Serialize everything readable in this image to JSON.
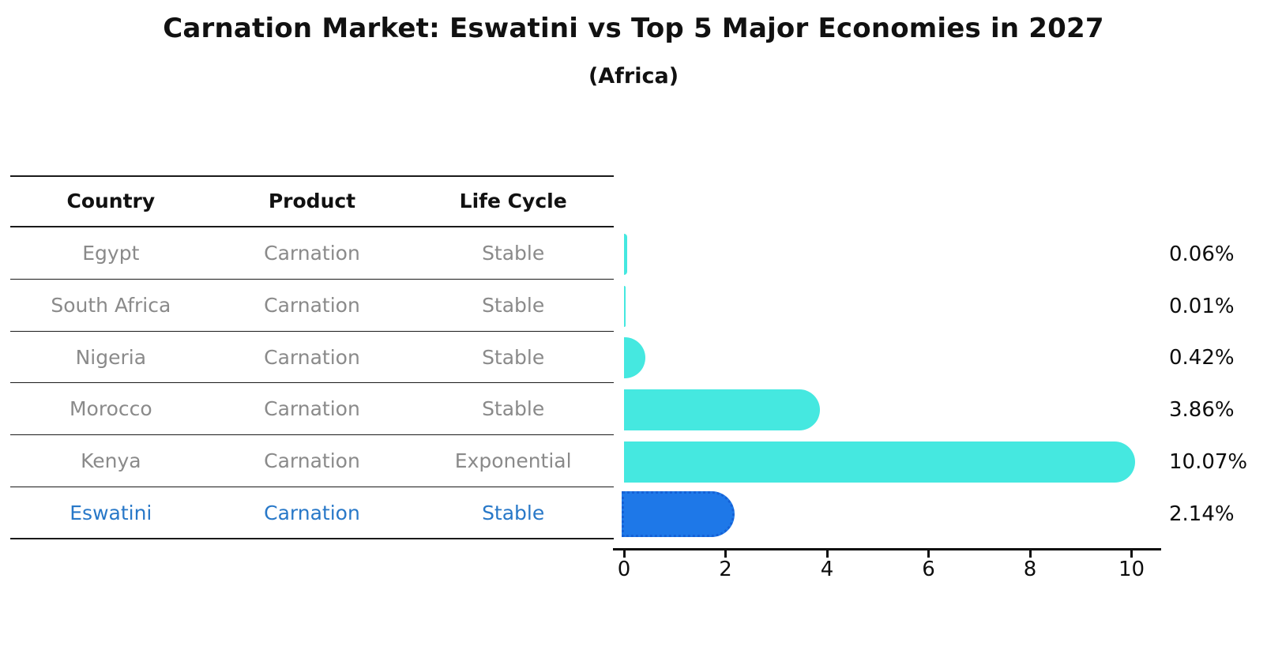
{
  "title": "Carnation Market: Eswatini vs Top 5 Major Economies in 2027",
  "subtitle": "(Africa)",
  "table": {
    "headers": [
      "Country",
      "Product",
      "Life Cycle"
    ],
    "rows": [
      {
        "country": "Egypt",
        "product": "Carnation",
        "life_cycle": "Stable",
        "highlight": false
      },
      {
        "country": "South Africa",
        "product": "Carnation",
        "life_cycle": "Stable",
        "highlight": false
      },
      {
        "country": "Nigeria",
        "product": "Carnation",
        "life_cycle": "Stable",
        "highlight": false
      },
      {
        "country": "Morocco",
        "product": "Carnation",
        "life_cycle": "Stable",
        "highlight": false
      },
      {
        "country": "Kenya",
        "product": "Carnation",
        "life_cycle": "Exponential",
        "highlight": false
      },
      {
        "country": "Eswatini",
        "product": "Carnation",
        "life_cycle": "Stable",
        "highlight": true
      }
    ]
  },
  "chart_data": {
    "type": "bar",
    "orientation": "horizontal",
    "title": "Carnation Market: Eswatini vs Top 5 Major Economies in 2027",
    "subtitle": "(Africa)",
    "categories": [
      "Egypt",
      "South Africa",
      "Nigeria",
      "Morocco",
      "Kenya",
      "Eswatini"
    ],
    "values": [
      0.06,
      0.01,
      0.42,
      3.86,
      10.07,
      2.14
    ],
    "value_labels": [
      "0.06%",
      "0.01%",
      "0.42%",
      "3.86%",
      "10.07%",
      "2.14%"
    ],
    "x_ticks": [
      "0",
      "2",
      "4",
      "6",
      "8",
      "10"
    ],
    "xlim": [
      0,
      10.55
    ],
    "grid": false,
    "legend": false,
    "highlight_index": 5
  },
  "colors": {
    "bar": "#45E8E0",
    "highlight_bar": "#1E78E8",
    "highlight_border": "#1561D6",
    "highlight_text": "#2878C8",
    "table_text": "#8A8A8A",
    "heading_text": "#111111",
    "axis": "#0D0D0D"
  }
}
